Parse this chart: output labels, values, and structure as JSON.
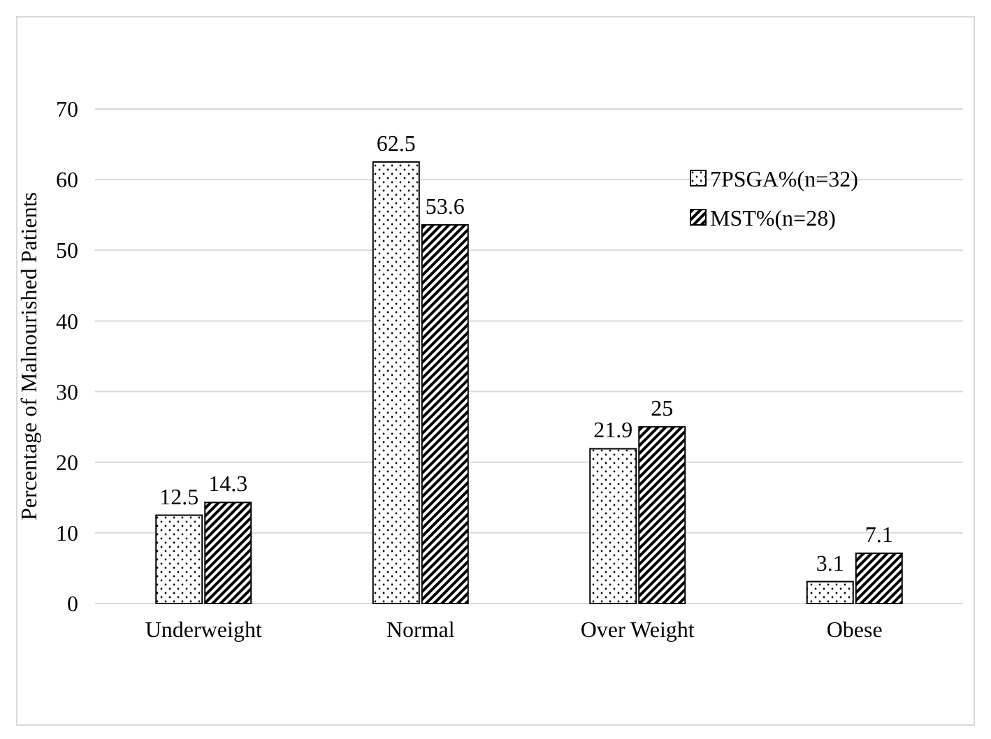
{
  "chart_data": {
    "type": "bar",
    "ylabel": "Percentage of Malnourished Patients",
    "categories": [
      "Underweight",
      "Normal",
      "Over Weight",
      "Obese"
    ],
    "series": [
      {
        "name": "7PSGA%(n=32)",
        "color": "#000000",
        "values": [
          12.5,
          62.5,
          21.9,
          3.1
        ]
      },
      {
        "name": "MST%(n=28)",
        "color": "#000000",
        "values": [
          14.3,
          53.6,
          25,
          7.1
        ]
      }
    ],
    "ylim": [
      0,
      70
    ],
    "yticks": [
      0,
      10,
      20,
      30,
      40,
      50,
      60,
      70
    ],
    "grid": "y",
    "legend": "top right",
    "data_labels": true
  }
}
